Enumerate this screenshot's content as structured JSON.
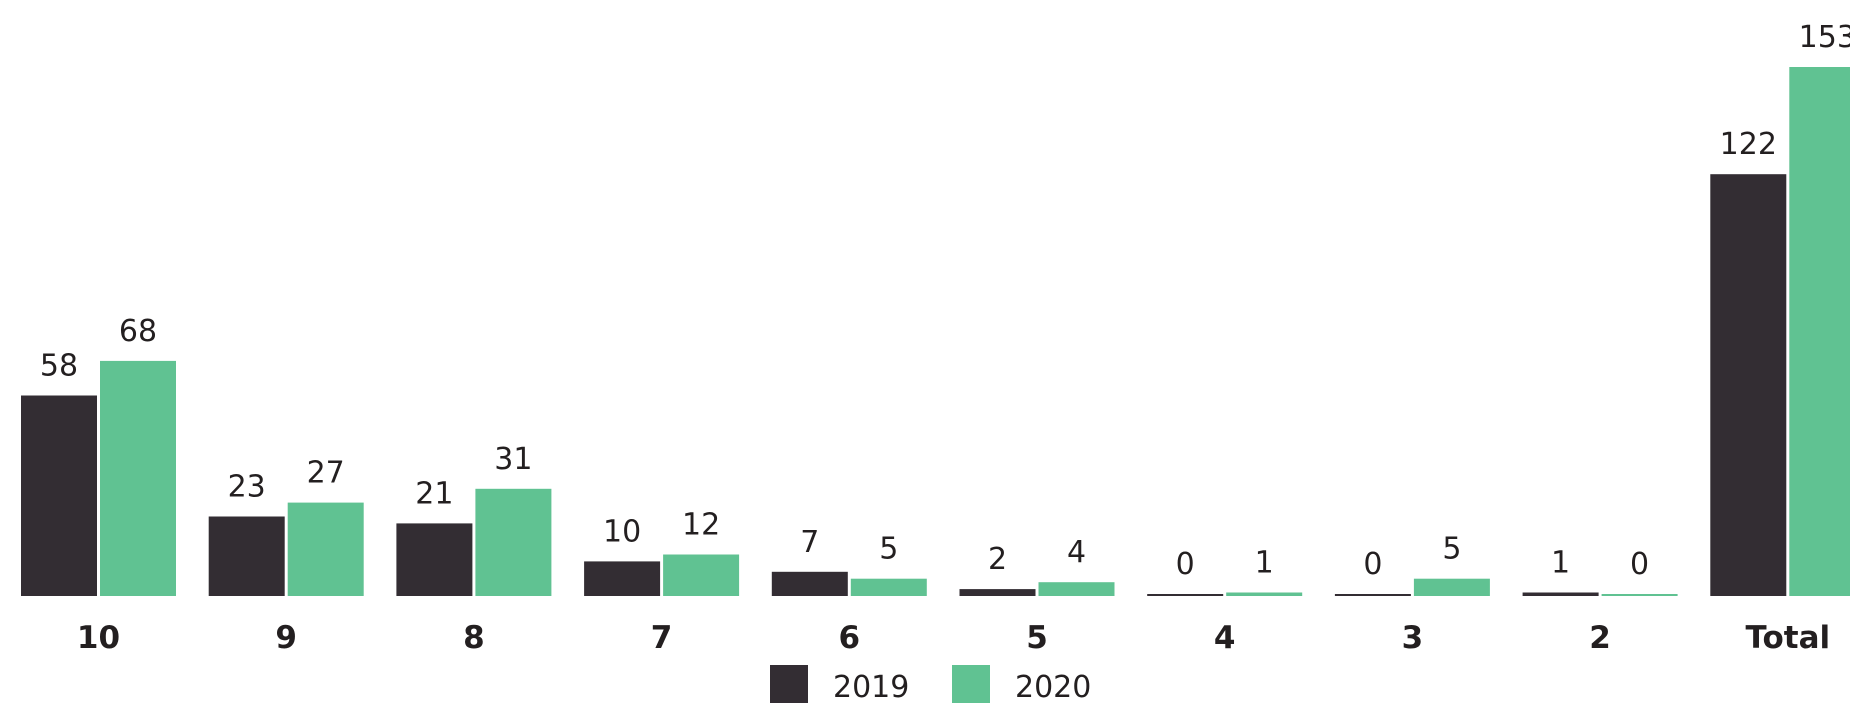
{
  "chart_data": {
    "type": "bar",
    "categories": [
      "10",
      "9",
      "8",
      "7",
      "6",
      "5",
      "4",
      "3",
      "2",
      "Total"
    ],
    "series": [
      {
        "name": "2019",
        "color": "#332d33",
        "values": [
          58,
          23,
          21,
          10,
          7,
          2,
          0,
          0,
          1,
          122
        ],
        "labels": [
          "58",
          "23",
          "21",
          "10",
          "7",
          "2",
          "0",
          "0",
          "1",
          "122"
        ]
      },
      {
        "name": "2020",
        "color": "#60c292",
        "values": [
          68,
          27,
          31,
          12,
          5,
          4,
          1,
          5,
          0,
          153
        ],
        "labels": [
          "68",
          "27",
          "31",
          "12",
          "5",
          "4",
          "1",
          "5",
          "0",
          "153"
        ]
      }
    ],
    "ylim": [
      0,
      153
    ],
    "grid": false,
    "legend_position": "bottom-center"
  }
}
